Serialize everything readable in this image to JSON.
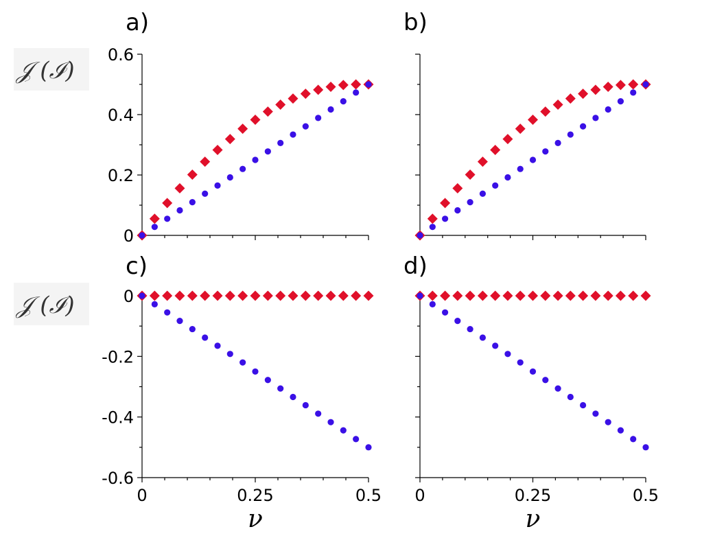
{
  "chart_data": [
    {
      "type": "scatter",
      "panel_label": "a)",
      "ylabel": "𝒥 (ℐ)",
      "xlabel": "",
      "xlim": [
        0,
        0.5
      ],
      "ylim": [
        0,
        0.6
      ],
      "yticks": [
        "0",
        "0.2",
        "0.4",
        "0.6"
      ],
      "xticks": [],
      "series": [
        {
          "name": "red-diamonds",
          "color": "#e0102a",
          "x": [
            0,
            0.0278,
            0.0556,
            0.0833,
            0.1111,
            0.1389,
            0.1667,
            0.1944,
            0.2222,
            0.25,
            0.2778,
            0.3056,
            0.3333,
            0.3611,
            0.3889,
            0.4167,
            0.4444,
            0.4722,
            0.5
          ],
          "y": [
            0,
            0.055,
            0.107,
            0.156,
            0.201,
            0.244,
            0.283,
            0.319,
            0.353,
            0.383,
            0.41,
            0.433,
            0.453,
            0.469,
            0.482,
            0.492,
            0.498,
            0.5,
            0.5
          ]
        },
        {
          "name": "blue-dots",
          "color": "#3a10e6",
          "x": [
            0,
            0.0278,
            0.0556,
            0.0833,
            0.1111,
            0.1389,
            0.1667,
            0.1944,
            0.2222,
            0.25,
            0.2778,
            0.3056,
            0.3333,
            0.3611,
            0.3889,
            0.4167,
            0.4444,
            0.4722,
            0.5
          ],
          "y": [
            0,
            0.028,
            0.055,
            0.083,
            0.11,
            0.138,
            0.165,
            0.192,
            0.22,
            0.25,
            0.278,
            0.306,
            0.334,
            0.361,
            0.389,
            0.417,
            0.444,
            0.473,
            0.5
          ]
        }
      ]
    },
    {
      "type": "scatter",
      "panel_label": "b)",
      "ylabel": "",
      "xlabel": "",
      "xlim": [
        0,
        0.5
      ],
      "ylim": [
        0,
        0.6
      ],
      "yticks": [],
      "xticks": [],
      "series": [
        {
          "name": "red-diamonds",
          "color": "#e0102a",
          "x": [
            0,
            0.0278,
            0.0556,
            0.0833,
            0.1111,
            0.1389,
            0.1667,
            0.1944,
            0.2222,
            0.25,
            0.2778,
            0.3056,
            0.3333,
            0.3611,
            0.3889,
            0.4167,
            0.4444,
            0.4722,
            0.5
          ],
          "y": [
            0,
            0.055,
            0.107,
            0.156,
            0.201,
            0.244,
            0.283,
            0.319,
            0.353,
            0.383,
            0.41,
            0.433,
            0.453,
            0.469,
            0.482,
            0.492,
            0.498,
            0.5,
            0.5
          ]
        },
        {
          "name": "blue-dots",
          "color": "#3a10e6",
          "x": [
            0,
            0.0278,
            0.0556,
            0.0833,
            0.1111,
            0.1389,
            0.1667,
            0.1944,
            0.2222,
            0.25,
            0.2778,
            0.3056,
            0.3333,
            0.3611,
            0.3889,
            0.4167,
            0.4444,
            0.4722,
            0.5
          ],
          "y": [
            0,
            0.028,
            0.055,
            0.083,
            0.11,
            0.138,
            0.165,
            0.192,
            0.22,
            0.25,
            0.278,
            0.306,
            0.334,
            0.361,
            0.389,
            0.417,
            0.444,
            0.473,
            0.5
          ]
        }
      ]
    },
    {
      "type": "scatter",
      "panel_label": "c)",
      "ylabel": "𝒥 (ℐ)",
      "xlabel": "ν",
      "xlim": [
        0,
        0.5
      ],
      "ylim": [
        -0.6,
        0
      ],
      "yticks": [
        "0",
        "-0.2",
        "-0.4",
        "-0.6"
      ],
      "xticks": [
        "0",
        "0.25",
        "0.5"
      ],
      "series": [
        {
          "name": "red-diamonds",
          "color": "#e0102a",
          "x": [
            0,
            0.0278,
            0.0556,
            0.0833,
            0.1111,
            0.1389,
            0.1667,
            0.1944,
            0.2222,
            0.25,
            0.2778,
            0.3056,
            0.3333,
            0.3611,
            0.3889,
            0.4167,
            0.4444,
            0.4722,
            0.5
          ],
          "y": [
            0,
            0,
            0,
            0,
            0,
            0,
            0,
            0,
            0,
            0,
            0,
            0,
            0,
            0,
            0,
            0,
            0,
            0,
            0
          ]
        },
        {
          "name": "blue-dots",
          "color": "#3a10e6",
          "x": [
            0,
            0.0278,
            0.0556,
            0.0833,
            0.1111,
            0.1389,
            0.1667,
            0.1944,
            0.2222,
            0.25,
            0.2778,
            0.3056,
            0.3333,
            0.3611,
            0.3889,
            0.4167,
            0.4444,
            0.4722,
            0.5
          ],
          "y": [
            0,
            -0.028,
            -0.055,
            -0.083,
            -0.11,
            -0.138,
            -0.165,
            -0.192,
            -0.22,
            -0.25,
            -0.278,
            -0.306,
            -0.334,
            -0.361,
            -0.389,
            -0.417,
            -0.444,
            -0.473,
            -0.5
          ]
        }
      ]
    },
    {
      "type": "scatter",
      "panel_label": "d)",
      "ylabel": "",
      "xlabel": "ν",
      "xlim": [
        0,
        0.5
      ],
      "ylim": [
        -0.6,
        0
      ],
      "yticks": [],
      "xticks": [
        "0",
        "0.25",
        "0.5"
      ],
      "series": [
        {
          "name": "red-diamonds",
          "color": "#e0102a",
          "x": [
            0,
            0.0278,
            0.0556,
            0.0833,
            0.1111,
            0.1389,
            0.1667,
            0.1944,
            0.2222,
            0.25,
            0.2778,
            0.3056,
            0.3333,
            0.3611,
            0.3889,
            0.4167,
            0.4444,
            0.4722,
            0.5
          ],
          "y": [
            0,
            0,
            0,
            0,
            0,
            0,
            0,
            0,
            0,
            0,
            0,
            0,
            0,
            0,
            0,
            0,
            0,
            0,
            0
          ]
        },
        {
          "name": "blue-dots",
          "color": "#3a10e6",
          "x": [
            0,
            0.0278,
            0.0556,
            0.0833,
            0.1111,
            0.1389,
            0.1667,
            0.1944,
            0.2222,
            0.25,
            0.2778,
            0.3056,
            0.3333,
            0.3611,
            0.3889,
            0.4167,
            0.4444,
            0.4722,
            0.5
          ],
          "y": [
            0,
            -0.028,
            -0.055,
            -0.083,
            -0.11,
            -0.138,
            -0.165,
            -0.192,
            -0.22,
            -0.25,
            -0.278,
            -0.306,
            -0.334,
            -0.361,
            -0.389,
            -0.417,
            -0.444,
            -0.473,
            -0.5
          ]
        }
      ]
    }
  ]
}
